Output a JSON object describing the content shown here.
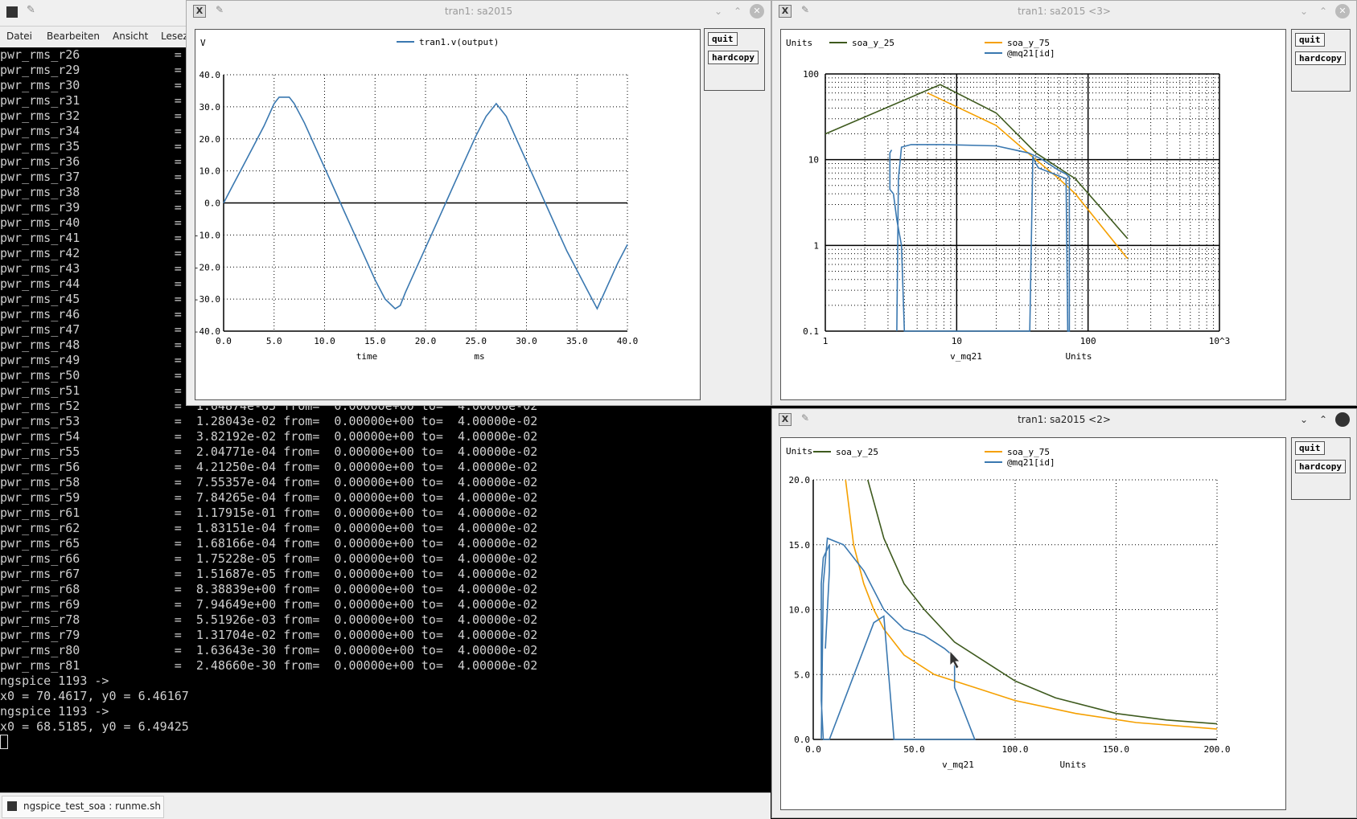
{
  "terminal": {
    "menu": [
      "Datei",
      "Bearbeiten",
      "Ansicht",
      "Lesez"
    ],
    "lines": [
      "pwr_rms_r26             =",
      "pwr_rms_r29             =",
      "pwr_rms_r30             =",
      "pwr_rms_r31             =",
      "pwr_rms_r32             =",
      "pwr_rms_r34             =",
      "pwr_rms_r35             =",
      "pwr_rms_r36             =",
      "pwr_rms_r37             =",
      "pwr_rms_r38             =",
      "pwr_rms_r39             =",
      "pwr_rms_r40             =",
      "pwr_rms_r41             =",
      "pwr_rms_r42             =",
      "pwr_rms_r43             =",
      "pwr_rms_r44             =",
      "pwr_rms_r45             =",
      "pwr_rms_r46             =",
      "pwr_rms_r47             =",
      "pwr_rms_r48             =",
      "pwr_rms_r49             =",
      "pwr_rms_r50             =",
      "pwr_rms_r51             =",
      "pwr_rms_r52             =  1.64874e-05 from=  0.00000e+00 to=  4.00000e-02",
      "pwr_rms_r53             =  1.28043e-02 from=  0.00000e+00 to=  4.00000e-02",
      "pwr_rms_r54             =  3.82192e-02 from=  0.00000e+00 to=  4.00000e-02",
      "pwr_rms_r55             =  2.04771e-04 from=  0.00000e+00 to=  4.00000e-02",
      "pwr_rms_r56             =  4.21250e-04 from=  0.00000e+00 to=  4.00000e-02",
      "pwr_rms_r58             =  7.55357e-04 from=  0.00000e+00 to=  4.00000e-02",
      "pwr_rms_r59             =  7.84265e-04 from=  0.00000e+00 to=  4.00000e-02",
      "pwr_rms_r61             =  1.17915e-01 from=  0.00000e+00 to=  4.00000e-02",
      "pwr_rms_r62             =  1.83151e-04 from=  0.00000e+00 to=  4.00000e-02",
      "pwr_rms_r65             =  1.68166e-04 from=  0.00000e+00 to=  4.00000e-02",
      "pwr_rms_r66             =  1.75228e-05 from=  0.00000e+00 to=  4.00000e-02",
      "pwr_rms_r67             =  1.51687e-05 from=  0.00000e+00 to=  4.00000e-02",
      "pwr_rms_r68             =  8.38839e+00 from=  0.00000e+00 to=  4.00000e-02",
      "pwr_rms_r69             =  7.94649e+00 from=  0.00000e+00 to=  4.00000e-02",
      "pwr_rms_r78             =  5.51926e-03 from=  0.00000e+00 to=  4.00000e-02",
      "pwr_rms_r79             =  1.31704e-02 from=  0.00000e+00 to=  4.00000e-02",
      "pwr_rms_r80             =  1.63643e-30 from=  0.00000e+00 to=  4.00000e-02",
      "pwr_rms_r81             =  2.48660e-30 from=  0.00000e+00 to=  4.00000e-02",
      "ngspice 1193 ->",
      "x0 = 70.4617, y0 = 6.46167",
      "ngspice 1193 ->",
      "x0 = 68.5185, y0 = 6.49425"
    ]
  },
  "taskbar": {
    "item": "ngspice_test_soa : runme.sh"
  },
  "windows": {
    "w1": {
      "title": "tran1: sa2015",
      "quit": "quit",
      "hardcopy": "hardcopy"
    },
    "w3": {
      "title": "tran1: sa2015 <3>",
      "quit": "quit",
      "hardcopy": "hardcopy"
    },
    "w2": {
      "title": "tran1: sa2015 <2>",
      "quit": "quit",
      "hardcopy": "hardcopy"
    }
  },
  "colors": {
    "blue": "#3a78b0",
    "orange": "#f5a000",
    "olive": "#3e5a1e"
  },
  "chart_data": [
    {
      "type": "line",
      "ylabel": "V",
      "xlabel": "time",
      "xunit": "ms",
      "xlim": [
        0,
        40
      ],
      "ylim": [
        -40,
        40
      ],
      "xticks": [
        "0.0",
        "5.0",
        "10.0",
        "15.0",
        "20.0",
        "25.0",
        "30.0",
        "35.0",
        "40.0"
      ],
      "yticks": [
        "40.0",
        "30.0",
        "20.0",
        "10.0",
        "0.0",
        "-10.0",
        "-20.0",
        "-30.0",
        "-40.0"
      ],
      "series": [
        {
          "name": "tran1.v(output)",
          "x": [
            0,
            1,
            2,
            3,
            4,
            5,
            5.5,
            6,
            6.5,
            7,
            8,
            9,
            10,
            11,
            12,
            13,
            14,
            15,
            16,
            17,
            17.5,
            18,
            19,
            20,
            21,
            22,
            23,
            24,
            25,
            26,
            27,
            28,
            29,
            30,
            31,
            32,
            33,
            34,
            35,
            36,
            37,
            38,
            39,
            40
          ],
          "y": [
            0,
            6,
            12,
            18,
            24,
            31,
            33,
            33,
            33,
            31,
            25,
            18,
            11,
            4,
            -3,
            -10,
            -17,
            -24,
            -30,
            -33,
            -32,
            -28,
            -21,
            -14,
            -7,
            0,
            7,
            14,
            21,
            27,
            31,
            27,
            20,
            13,
            6,
            -1,
            -8,
            -15,
            -21,
            -27,
            -33,
            -26,
            -19,
            -13
          ]
        }
      ]
    },
    {
      "type": "line",
      "scale": "log-log",
      "ylabel": "Units",
      "xlabel": "v_mq21",
      "xunit": "Units",
      "xlim": [
        1,
        1000
      ],
      "ylim": [
        0.1,
        100
      ],
      "xticks": [
        "1",
        "10",
        "100",
        "10^3"
      ],
      "yticks": [
        "100",
        "10",
        "1",
        "0.1"
      ],
      "series": [
        {
          "name": "soa_y_25",
          "x": [
            1,
            7.5,
            20,
            40,
            60,
            80,
            200
          ],
          "y": [
            20,
            75,
            35,
            12,
            8,
            6,
            1.2
          ]
        },
        {
          "name": "soa_y_75",
          "x": [
            6,
            20,
            40,
            60,
            80,
            200
          ],
          "y": [
            60,
            25,
            10,
            6,
            4,
            0.7
          ]
        },
        {
          "name": "@mq21[id]",
          "x": [
            3.5,
            3.6,
            3.8,
            4.5,
            8,
            20,
            35,
            40,
            45,
            60,
            68,
            70,
            72,
            72,
            70,
            68,
            42,
            40,
            38,
            36,
            4,
            3.8,
            3.5,
            3.3,
            3.1,
            3.1,
            3.2
          ],
          "y": [
            0.1,
            6,
            14,
            15,
            15,
            14.5,
            12,
            11,
            10,
            7.5,
            6.8,
            6.5,
            6.3,
            0.1,
            0.1,
            6,
            8,
            9,
            11,
            0.1,
            0.1,
            1,
            2,
            4,
            4.5,
            12,
            13
          ]
        }
      ]
    },
    {
      "type": "line",
      "ylabel": "Units",
      "xlabel": "v_mq21",
      "xunit": "Units",
      "xlim": [
        0,
        200
      ],
      "ylim": [
        0,
        20
      ],
      "xticks": [
        "0.0",
        "50.0",
        "100.0",
        "150.0",
        "200.0"
      ],
      "yticks": [
        "20.0",
        "15.0",
        "10.0",
        "5.0",
        "0.0"
      ],
      "series": [
        {
          "name": "soa_y_25",
          "x": [
            27,
            35,
            45,
            55,
            70,
            85,
            100,
            120,
            150,
            175,
            200
          ],
          "y": [
            20,
            15.5,
            12,
            10,
            7.5,
            6,
            4.5,
            3.2,
            2,
            1.5,
            1.2
          ]
        },
        {
          "name": "soa_y_75",
          "x": [
            16,
            20,
            25,
            30,
            35,
            45,
            60,
            80,
            100,
            130,
            160,
            200
          ],
          "y": [
            20,
            15,
            12,
            10,
            8.5,
            6.5,
            5,
            4,
            3,
            2,
            1.3,
            0.8
          ]
        },
        {
          "name": "@mq21[id]",
          "x": [
            4,
            5,
            7,
            15,
            25,
            35,
            45,
            55,
            65,
            68,
            70,
            70,
            75,
            80,
            40,
            35,
            30,
            8,
            5,
            4,
            4,
            4,
            5,
            8,
            8,
            7,
            6
          ],
          "y": [
            0,
            12,
            15.5,
            15,
            13,
            10,
            8.5,
            8,
            7,
            6.6,
            6.4,
            4,
            2,
            0,
            0,
            9.5,
            9,
            0,
            0,
            3,
            8,
            12,
            14,
            15,
            13,
            10,
            7
          ]
        }
      ]
    }
  ]
}
